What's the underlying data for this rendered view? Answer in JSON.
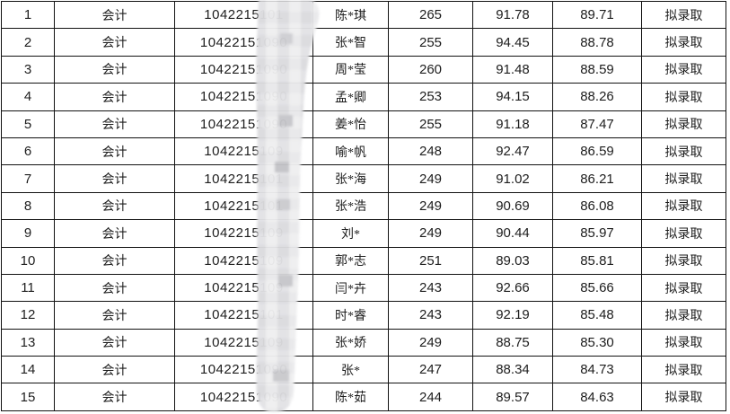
{
  "document": {
    "description_note": "",
    "colors": {
      "grid_line": "#121212",
      "text": "#1d1d1d",
      "background": "#ffffff",
      "mosaic_light": "#efeff0",
      "mosaic_mid": "#e2e2e5",
      "mosaic_dark": "#c6c6ca"
    }
  },
  "table": {
    "rows": [
      {
        "rank": "1",
        "major": "会计",
        "id": "1042215101",
        "name": "陈*琪",
        "score1": "265",
        "score2": "91.78",
        "score3": "89.71",
        "status": "拟录取"
      },
      {
        "rank": "2",
        "major": "会计",
        "id": "10422151090",
        "name": "张*智",
        "score1": "255",
        "score2": "94.45",
        "score3": "88.78",
        "status": "拟录取"
      },
      {
        "rank": "3",
        "major": "会计",
        "id": "10422151090",
        "name": "周*莹",
        "score1": "260",
        "score2": "91.48",
        "score3": "88.59",
        "status": "拟录取"
      },
      {
        "rank": "4",
        "major": "会计",
        "id": "10422151090",
        "name": "孟*卿",
        "score1": "253",
        "score2": "94.15",
        "score3": "88.26",
        "status": "拟录取"
      },
      {
        "rank": "5",
        "major": "会计",
        "id": "10422151090",
        "name": "姜*怡",
        "score1": "255",
        "score2": "91.18",
        "score3": "87.47",
        "status": "拟录取"
      },
      {
        "rank": "6",
        "major": "会计",
        "id": "1042215109",
        "name": "喻*帆",
        "score1": "248",
        "score2": "92.47",
        "score3": "86.59",
        "status": "拟录取"
      },
      {
        "rank": "7",
        "major": "会计",
        "id": "1042215101",
        "name": "张*海",
        "score1": "249",
        "score2": "91.02",
        "score3": "86.21",
        "status": "拟录取"
      },
      {
        "rank": "8",
        "major": "会计",
        "id": "1042215101",
        "name": "张*浩",
        "score1": "249",
        "score2": "90.69",
        "score3": "86.08",
        "status": "拟录取"
      },
      {
        "rank": "9",
        "major": "会计",
        "id": "1042215109",
        "name": "刘*",
        "score1": "249",
        "score2": "90.44",
        "score3": "85.97",
        "status": "拟录取"
      },
      {
        "rank": "10",
        "major": "会计",
        "id": "1042215109",
        "name": "郭*志",
        "score1": "251",
        "score2": "89.03",
        "score3": "85.81",
        "status": "拟录取"
      },
      {
        "rank": "11",
        "major": "会计",
        "id": "1042215109",
        "name": "闫*卉",
        "score1": "243",
        "score2": "92.66",
        "score3": "85.66",
        "status": "拟录取"
      },
      {
        "rank": "12",
        "major": "会计",
        "id": "1042215101",
        "name": "时*睿",
        "score1": "243",
        "score2": "92.19",
        "score3": "85.48",
        "status": "拟录取"
      },
      {
        "rank": "13",
        "major": "会计",
        "id": "1042215109",
        "name": "张*娇",
        "score1": "249",
        "score2": "88.75",
        "score3": "85.30",
        "status": "拟录取"
      },
      {
        "rank": "14",
        "major": "会计",
        "id": "10422151090",
        "name": "张*",
        "score1": "247",
        "score2": "88.34",
        "score3": "84.73",
        "status": "拟录取"
      },
      {
        "rank": "15",
        "major": "会计",
        "id": "10422151090",
        "name": "陈*茹",
        "score1": "244",
        "score2": "89.57",
        "score3": "84.63",
        "status": "拟录取"
      }
    ]
  }
}
